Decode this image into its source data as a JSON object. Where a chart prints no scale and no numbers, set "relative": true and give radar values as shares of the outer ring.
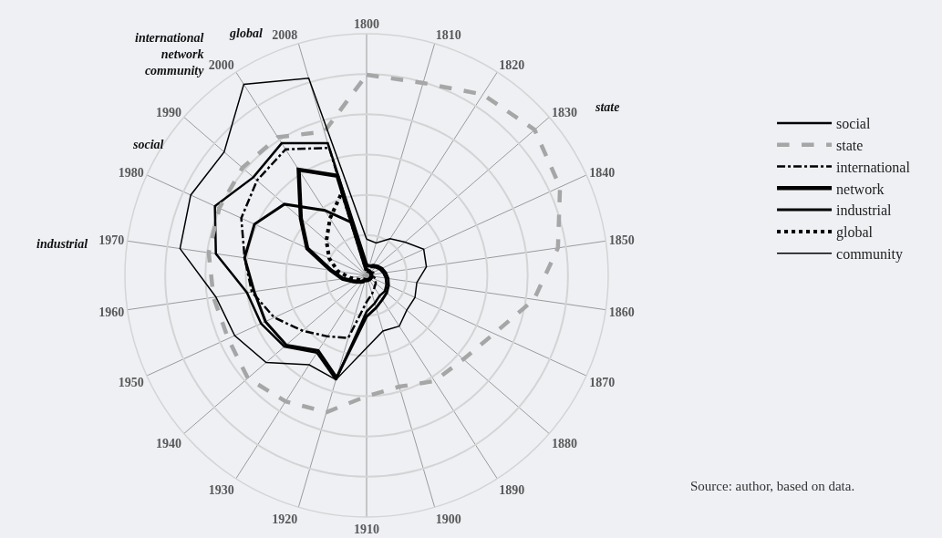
{
  "chart_data": {
    "type": "radar",
    "relative": true,
    "grid": true,
    "legend": "right",
    "marker": "none",
    "categories": [
      "1800",
      "1810",
      "1820",
      "1830",
      "1840",
      "1850",
      "1860",
      "1870",
      "1880",
      "1890",
      "1900",
      "1910",
      "1920",
      "1930",
      "1940",
      "1950",
      "1960",
      "1970",
      "1980",
      "1990",
      "2000",
      "2008"
    ],
    "series": [
      {
        "name": "social",
        "color": "#000000",
        "line_style": "solid",
        "values": [
          0.05,
          0.04,
          0.04,
          0.05,
          0.06,
          0.07,
          0.08,
          0.09,
          0.1,
          0.1,
          0.12,
          0.15,
          0.45,
          0.38,
          0.45,
          0.48,
          0.5,
          0.63,
          0.69,
          0.62,
          0.65,
          0.57
        ]
      },
      {
        "name": "state",
        "color": "#a6a6a6",
        "line_style": "dashed",
        "values": [
          0.83,
          0.83,
          0.89,
          0.92,
          0.88,
          0.8,
          0.7,
          0.58,
          0.53,
          0.52,
          0.48,
          0.5,
          0.59,
          0.62,
          0.65,
          0.63,
          0.64,
          0.66,
          0.67,
          0.68,
          0.68,
          0.62
        ]
      },
      {
        "name": "international",
        "color": "#000000",
        "line_style": "dashdot",
        "values": [
          0.02,
          0.02,
          0.02,
          0.02,
          0.03,
          0.03,
          0.03,
          0.04,
          0.05,
          0.06,
          0.08,
          0.11,
          0.27,
          0.3,
          0.35,
          0.42,
          0.48,
          0.51,
          0.57,
          0.6,
          0.62,
          0.55
        ]
      },
      {
        "name": "network",
        "color": "#000000",
        "line_style": "solid",
        "values": [
          0.02,
          0.02,
          0.02,
          0.02,
          0.02,
          0.02,
          0.02,
          0.02,
          0.02,
          0.02,
          0.02,
          0.02,
          0.02,
          0.03,
          0.04,
          0.06,
          0.1,
          0.15,
          0.27,
          0.36,
          0.52,
          0.43
        ]
      },
      {
        "name": "industrial",
        "color": "#000000",
        "line_style": "solid",
        "values": [
          0.04,
          0.04,
          0.05,
          0.06,
          0.07,
          0.08,
          0.09,
          0.1,
          0.11,
          0.12,
          0.14,
          0.17,
          0.44,
          0.37,
          0.44,
          0.46,
          0.47,
          0.51,
          0.51,
          0.45,
          0.32,
          0.23
        ]
      },
      {
        "name": "global",
        "color": "#000000",
        "line_style": "dotted",
        "values": [
          0.02,
          0.02,
          0.02,
          0.02,
          0.02,
          0.02,
          0.02,
          0.02,
          0.02,
          0.02,
          0.02,
          0.02,
          0.02,
          0.02,
          0.03,
          0.04,
          0.07,
          0.12,
          0.17,
          0.22,
          0.28,
          0.36
        ]
      },
      {
        "name": "community",
        "color": "#000000",
        "line_style": "solid",
        "values": [
          0.15,
          0.14,
          0.18,
          0.21,
          0.26,
          0.25,
          0.21,
          0.22,
          0.22,
          0.25,
          0.24,
          0.3,
          0.45,
          0.44,
          0.55,
          0.6,
          0.63,
          0.78,
          0.8,
          0.78,
          0.94,
          0.85
        ]
      }
    ],
    "annotations": [
      "state",
      "global",
      "international\nnetwork\ncommunity",
      "social",
      "industrial",
      "Source: author, based on data."
    ]
  }
}
